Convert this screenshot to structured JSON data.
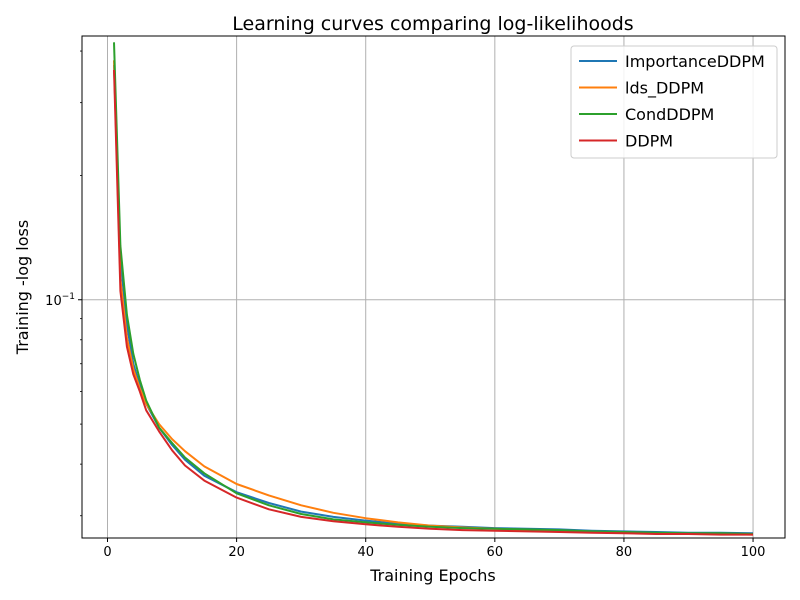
{
  "chart_data": {
    "type": "line",
    "title": "Learning curves comparing log-likelihoods",
    "xlabel": "Training Epochs",
    "ylabel": "Training -log loss",
    "xlim": [
      -3.95,
      104.95
    ],
    "ylim": [
      0.0265,
      0.435
    ],
    "yscale": "log",
    "xticks": [
      0,
      20,
      40,
      60,
      80,
      100
    ],
    "yticks": [
      {
        "value": 0.1,
        "label": "10",
        "exp": "−1"
      }
    ],
    "grid": true,
    "legend_position": "top-right",
    "series": [
      {
        "name": "ImportanceDDPM",
        "color": "#1f77b4",
        "x": [
          1,
          2,
          3,
          4,
          5,
          6,
          8,
          10,
          12,
          15,
          20,
          25,
          30,
          35,
          40,
          45,
          50,
          55,
          60,
          65,
          70,
          75,
          80,
          85,
          90,
          95,
          100
        ],
        "y": [
          0.37,
          0.125,
          0.087,
          0.07,
          0.062,
          0.056,
          0.049,
          0.0445,
          0.041,
          0.0375,
          0.0342,
          0.0322,
          0.0307,
          0.0298,
          0.0292,
          0.0287,
          0.0284,
          0.0282,
          0.028,
          0.0279,
          0.0278,
          0.0276,
          0.0275,
          0.0274,
          0.0273,
          0.0273,
          0.0272
        ]
      },
      {
        "name": "lds_DDPM",
        "color": "#ff7f0e",
        "x": [
          1,
          2,
          3,
          4,
          5,
          6,
          8,
          10,
          12,
          15,
          20,
          25,
          30,
          35,
          40,
          45,
          50,
          55,
          60,
          65,
          70,
          75,
          80,
          85,
          90,
          95,
          100
        ],
        "y": [
          0.38,
          0.112,
          0.081,
          0.068,
          0.061,
          0.056,
          0.05,
          0.046,
          0.043,
          0.0395,
          0.0358,
          0.0336,
          0.0318,
          0.0305,
          0.0296,
          0.0289,
          0.0284,
          0.0281,
          0.0279,
          0.0277,
          0.0276,
          0.0274,
          0.0273,
          0.0272,
          0.0271,
          0.0271,
          0.027
        ]
      },
      {
        "name": "CondDDPM",
        "color": "#2ca02c",
        "x": [
          1,
          2,
          3,
          4,
          5,
          6,
          8,
          10,
          12,
          15,
          20,
          25,
          30,
          35,
          40,
          45,
          50,
          55,
          60,
          65,
          70,
          75,
          80,
          85,
          90,
          95,
          100
        ],
        "y": [
          0.42,
          0.135,
          0.092,
          0.074,
          0.064,
          0.057,
          0.049,
          0.045,
          0.0415,
          0.038,
          0.034,
          0.0318,
          0.0303,
          0.0294,
          0.0289,
          0.0285,
          0.0282,
          0.028,
          0.0279,
          0.0278,
          0.0277,
          0.0275,
          0.0274,
          0.0273,
          0.0272,
          0.0272,
          0.0271
        ]
      },
      {
        "name": "DDPM",
        "color": "#d62728",
        "x": [
          1,
          2,
          3,
          4,
          5,
          6,
          8,
          10,
          12,
          15,
          20,
          25,
          30,
          35,
          40,
          45,
          50,
          55,
          60,
          65,
          70,
          75,
          80,
          85,
          90,
          95,
          100
        ],
        "y": [
          0.36,
          0.105,
          0.077,
          0.066,
          0.06,
          0.054,
          0.048,
          0.0432,
          0.0397,
          0.0365,
          0.0332,
          0.0311,
          0.0298,
          0.0291,
          0.0286,
          0.0282,
          0.0279,
          0.0277,
          0.0276,
          0.0275,
          0.0274,
          0.0273,
          0.0272,
          0.0271,
          0.0271,
          0.027,
          0.027
        ]
      }
    ]
  }
}
